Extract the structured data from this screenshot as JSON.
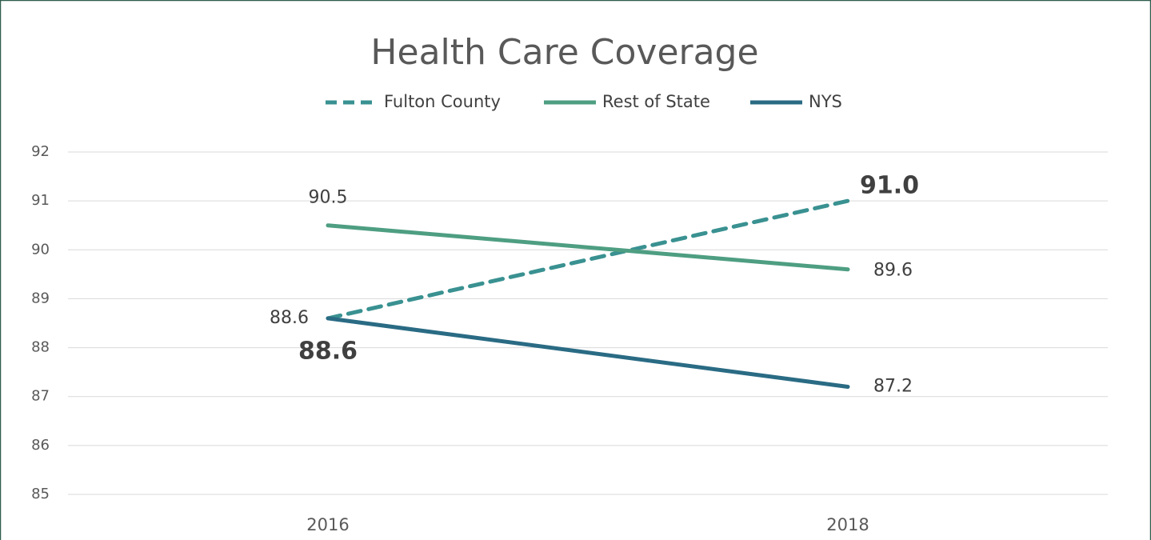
{
  "chart_data": {
    "type": "line",
    "title": "Health Care Coverage",
    "categories": [
      "2016",
      "2018"
    ],
    "series": [
      {
        "name": "Fulton County",
        "color": "#3a9191",
        "dashed": true,
        "values": [
          88.6,
          91.0
        ],
        "value_labels": [
          "88.6",
          "91.0"
        ]
      },
      {
        "name": "Rest of State",
        "color": "#4e9e82",
        "values": [
          90.5,
          89.6
        ],
        "value_labels": [
          "90.5",
          "89.6"
        ]
      },
      {
        "name": "NYS",
        "color": "#2a6b84",
        "values": [
          88.6,
          87.2
        ],
        "value_labels": [
          "88.6",
          "87.2"
        ]
      }
    ],
    "ylim": [
      85,
      92
    ],
    "yticks": [
      85,
      86,
      87,
      88,
      89,
      90,
      91,
      92
    ],
    "grid": true,
    "legend": "top"
  }
}
